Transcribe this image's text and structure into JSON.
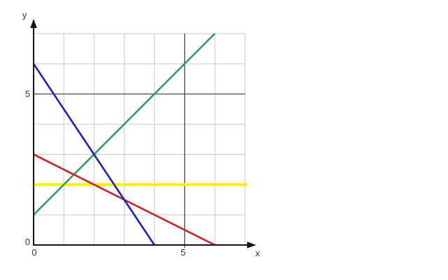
{
  "page": {
    "background": "#ffffff"
  },
  "chart_data": {
    "type": "line",
    "title": "",
    "xlabel": "x",
    "ylabel": "y",
    "xlim": [
      0,
      7.4
    ],
    "ylim": [
      0,
      7.4
    ],
    "grid": {
      "on": true,
      "step": 1,
      "x_max": 7,
      "y_max": 7,
      "minor_color": "#c9c9c9",
      "major_x": 5,
      "major_y": 5,
      "major_color": "#474747"
    },
    "axes": {
      "color": "#141414",
      "x_ticks": [
        {
          "value": 0,
          "label": "0"
        },
        {
          "value": 5,
          "label": "5"
        }
      ],
      "y_ticks": [
        {
          "value": 0,
          "label": "0"
        },
        {
          "value": 5,
          "label": "5"
        }
      ]
    },
    "series": [
      {
        "name": "yellow-horizontal-line",
        "color": "#ffef00",
        "width": 4.2,
        "points": [
          [
            -0.05,
            2
          ],
          [
            7.07,
            2
          ]
        ]
      },
      {
        "name": "green-line",
        "color": "#2f9e64",
        "width": 2.6,
        "points": [
          [
            0,
            1
          ],
          [
            6,
            7
          ]
        ]
      },
      {
        "name": "red-line",
        "color": "#c62228",
        "width": 2.6,
        "points": [
          [
            0,
            3
          ],
          [
            6,
            0
          ]
        ]
      },
      {
        "name": "blue-line",
        "color": "#2121b3",
        "width": 2.6,
        "points": [
          [
            0,
            6
          ],
          [
            4,
            0
          ]
        ]
      }
    ]
  }
}
